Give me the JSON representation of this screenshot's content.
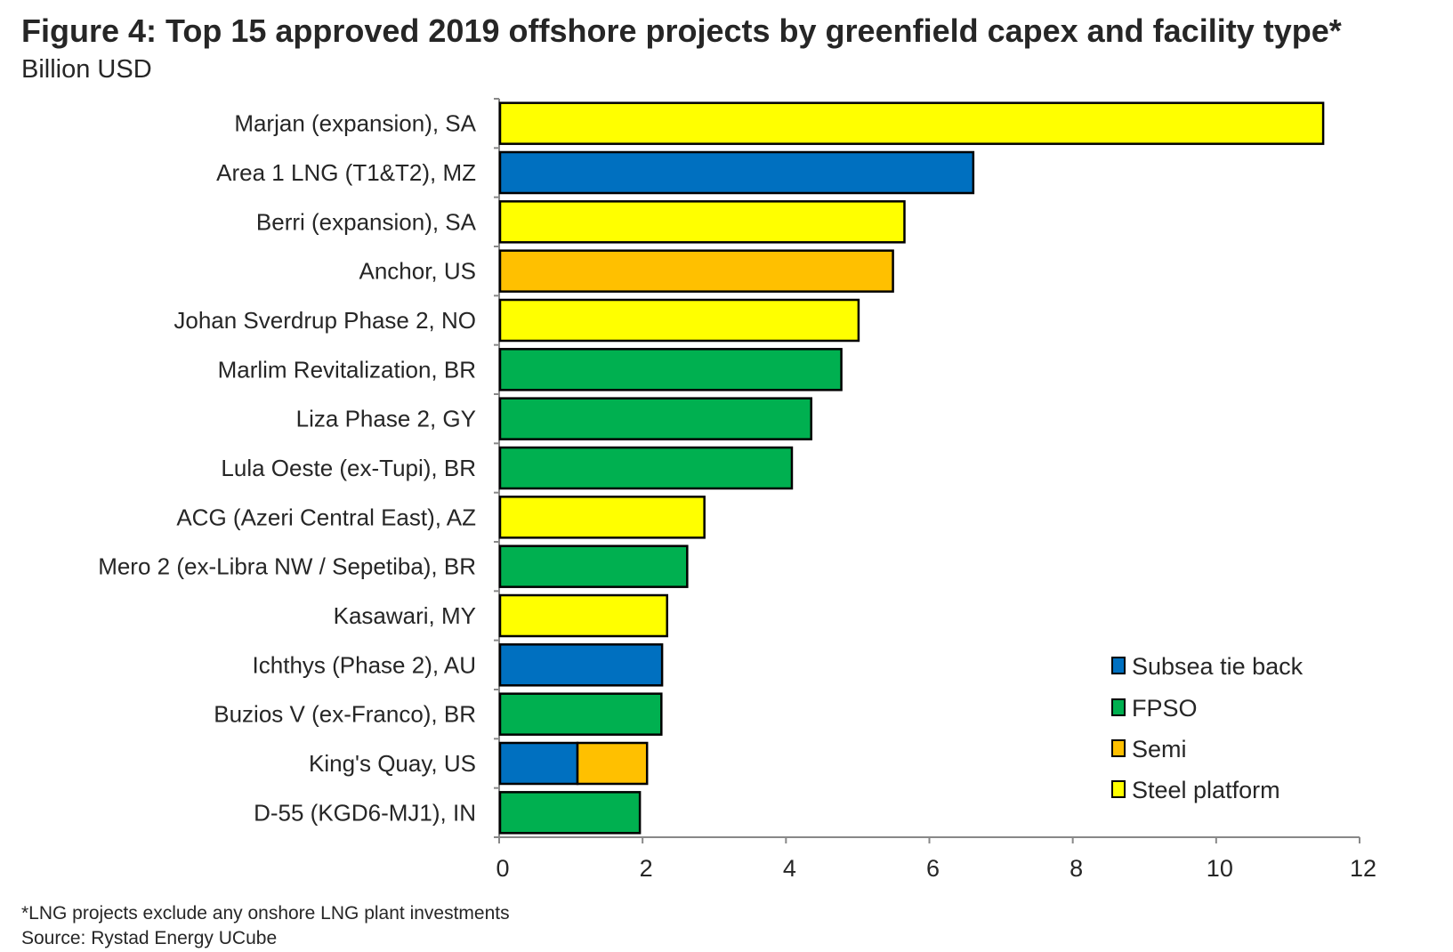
{
  "chart_data": {
    "type": "bar",
    "orientation": "horizontal",
    "stacked": true,
    "title": "Figure 4: Top 15 approved 2019 offshore projects by greenfield capex and facility type*",
    "subtitle": "Billion USD",
    "categories": [
      "Marjan (expansion), SA",
      "Area 1 LNG (T1&T2), MZ",
      "Berri (expansion), SA",
      "Anchor, US",
      "Johan Sverdrup Phase 2, NO",
      "Marlim Revitalization, BR",
      "Liza Phase 2, GY",
      "Lula Oeste (ex-Tupi), BR",
      "ACG (Azeri Central East), AZ",
      "Mero 2 (ex-Libra NW / Sepetiba), BR",
      "Kasawari, MY",
      "Ichthys (Phase 2), AU",
      "Buzios V (ex-Franco), BR",
      "King's Quay, US",
      "D-55 (KGD6-MJ1), IN"
    ],
    "series": [
      {
        "name": "Subsea tie back",
        "color": "#0070C0",
        "values": [
          0,
          6.6,
          0,
          0,
          0,
          0,
          0,
          0,
          0,
          0,
          0,
          2.26,
          0,
          1.08,
          0
        ]
      },
      {
        "name": "FPSO",
        "color": "#00B050",
        "values": [
          0,
          0,
          0,
          0,
          0,
          4.76,
          4.34,
          4.07,
          0,
          2.61,
          0,
          0,
          2.25,
          0,
          1.95
        ]
      },
      {
        "name": "Semi",
        "color": "#FFC000",
        "values": [
          0,
          0,
          0,
          5.48,
          0,
          0,
          0,
          0,
          0,
          0,
          0,
          0,
          0,
          0.97,
          0
        ]
      },
      {
        "name": "Steel platform",
        "color": "#FFFF00",
        "values": [
          11.48,
          0,
          5.64,
          0,
          5.0,
          0,
          0,
          0,
          2.85,
          0,
          2.33,
          0,
          0,
          0,
          0
        ]
      }
    ],
    "xlim": [
      0,
      12
    ],
    "xticks": [
      "0",
      "2",
      "4",
      "6",
      "8",
      "10",
      "12"
    ],
    "grid": false,
    "legend_position": "bottom-right"
  },
  "footnotes": [
    "*LNG projects exclude any onshore LNG plant investments",
    "Source: Rystad Energy UCube"
  ]
}
